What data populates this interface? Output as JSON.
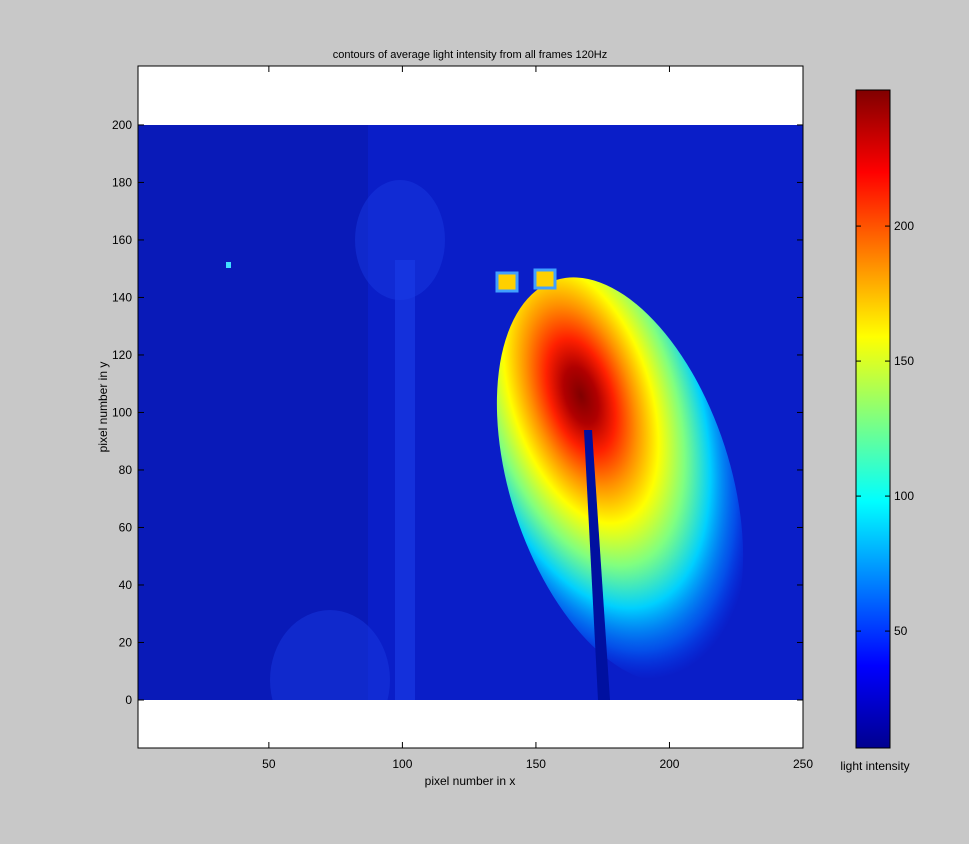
{
  "chart_data": {
    "type": "contour",
    "title": "contours of average light intensity from all frames 120Hz",
    "xlabel": "pixel number in x",
    "ylabel": "pixel number in y",
    "xlim": [
      1,
      250
    ],
    "xticks": [
      50,
      100,
      150,
      200,
      250
    ],
    "ylim": [
      -16.7,
      220.5
    ],
    "yticks": [
      0,
      20,
      40,
      60,
      80,
      100,
      120,
      140,
      160,
      180,
      200
    ],
    "image_extent": {
      "x": [
        1,
        250
      ],
      "y": [
        0,
        200
      ]
    },
    "colorbar": {
      "label": "light intensity",
      "clim": [
        6.7,
        250.4
      ],
      "ticks": [
        50,
        100,
        150,
        200
      ],
      "colormap": "jet"
    }
  }
}
